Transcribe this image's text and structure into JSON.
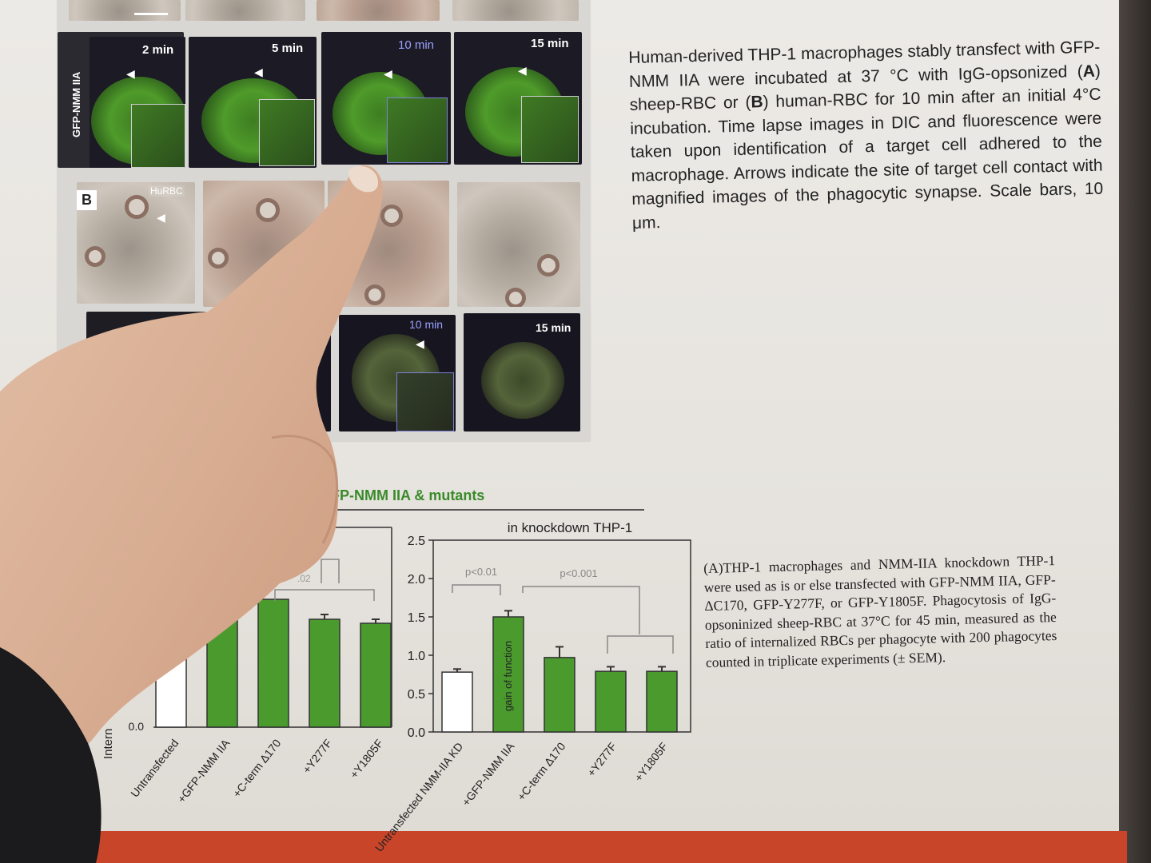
{
  "poster": {
    "micrograph": {
      "row_label_top": "GFP-NMM IIA",
      "panel_b_letter": "B",
      "hurbc_label": "HuRBC",
      "times_top": [
        "2 min",
        "5 min",
        "10 min",
        "15 min"
      ],
      "times_bottom": [
        "10 min",
        "15 min"
      ]
    },
    "caption_top": {
      "t1": "Human-derived THP-1 macrophages stably transfect with GFP-NMM IIA were incubated at 37 °C with IgG-opsonized (",
      "a": "A",
      "t2": ") sheep-RBC or (",
      "b": "B",
      "t3": ") human-RBC for 10 min after an initial 4°C incubation. Time lapse images in DIC and fluorescence were taken upon identification of a target cell adhered to the macrophage. Arrows indicate the site of target cell contact with magnified images of the phagocytic synapse. Scale bars, 10 μm."
    },
    "caption_bottom": "(A)THP-1 macrophages and NMM-IIA knockdown THP-1 were used as is or else transfected with GFP-NMM IIA, GFP-ΔC170, GFP-Y277F, or GFP-Y1805F. Phagocytosis of IgG-opsoninized sheep-RBC at 37°C for 45 min, measured as the ratio of internalized RBCs per phagocyte with 200 phagocytes counted in triplicate experiments (± SEM).",
    "chart_title": "FP-NMM IIA & mutants"
  },
  "chart_data": [
    {
      "type": "bar",
      "title": "",
      "ylabel": "Intern",
      "ylim": [
        0,
        2.5
      ],
      "yticks_visible": [
        "0.0"
      ],
      "categories": [
        "Untransfected",
        "+GFP-NMM IIA",
        "+C-term Δ170",
        "+Y277F",
        "+Y1805F"
      ],
      "values": [
        1.0,
        1.35,
        1.6,
        1.35,
        1.3
      ],
      "errors": [
        0.0,
        0.0,
        0.0,
        0.06,
        0.05
      ],
      "fills": [
        "#ffffff",
        "#4a9a2e",
        "#4a9a2e",
        "#4a9a2e",
        "#4a9a2e"
      ],
      "annotations": [
        ".02"
      ]
    },
    {
      "type": "bar",
      "title": "in knockdown THP-1",
      "ylim": [
        0,
        2.5
      ],
      "yticks": [
        "0.0",
        "0.5",
        "1.0",
        "1.5",
        "2.0",
        "2.5"
      ],
      "categories": [
        "Untransfected NMM-IIA KD",
        "+GFP-NMM IIA",
        "+C-term Δ170",
        "+Y277F",
        "+Y1805F"
      ],
      "values": [
        0.78,
        1.5,
        0.97,
        0.79,
        0.79
      ],
      "errors": [
        0.04,
        0.08,
        0.14,
        0.06,
        0.06
      ],
      "fills": [
        "#ffffff",
        "#4a9a2e",
        "#4a9a2e",
        "#4a9a2e",
        "#4a9a2e"
      ],
      "bar_label": "gain of function",
      "annotations": [
        "p<0.01",
        "p<0.001"
      ]
    }
  ]
}
